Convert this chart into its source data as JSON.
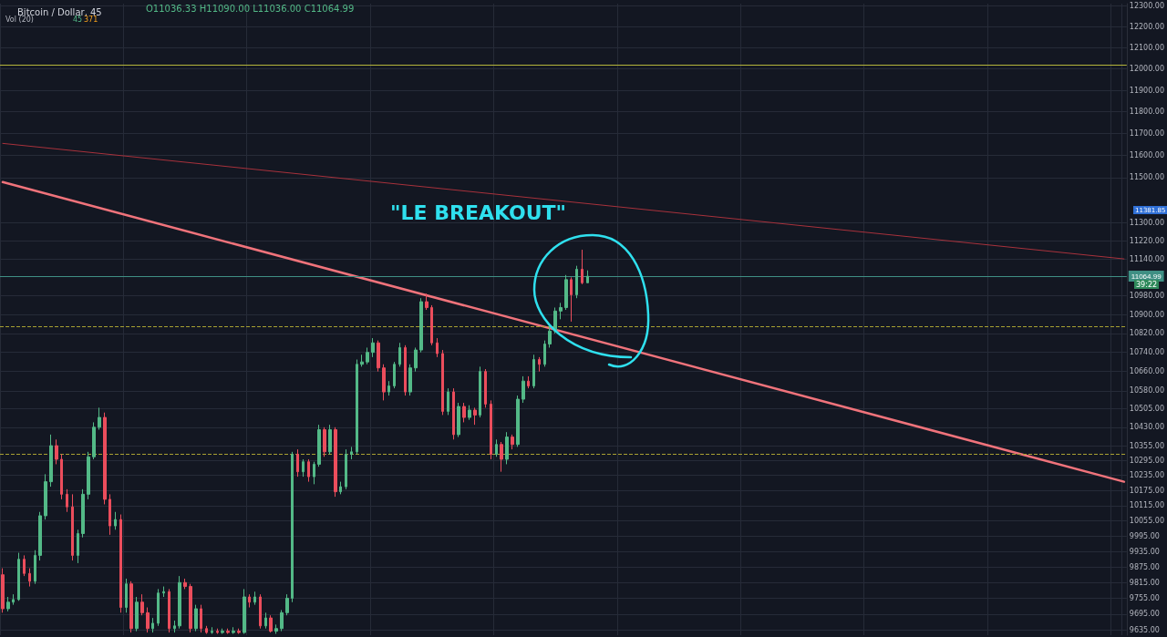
{
  "chart_data": {
    "type": "candlestick",
    "title": "Bitcoin / Dollar, 45",
    "annotations": [
      "O11036.33 H11090.00 L11036.00 C11064.99",
      "Vol (20)",
      "45",
      "371",
      "\"LE BREAKOUT\"",
      "39:22",
      "11381.85"
    ],
    "categories": [
      null,
      null,
      null,
      null,
      null,
      null,
      null,
      null,
      null,
      null,
      null,
      null,
      null,
      null,
      null,
      null,
      null,
      null,
      null,
      null,
      null,
      null,
      null,
      null,
      null,
      null,
      null,
      null,
      null,
      null,
      null,
      null,
      null,
      null,
      null,
      null,
      null,
      null,
      null,
      null,
      null,
      null,
      null,
      null,
      null,
      null,
      null,
      null,
      null,
      null,
      null,
      null,
      null,
      null,
      null,
      null,
      null,
      null,
      null,
      null,
      null,
      null,
      null,
      null,
      null,
      null,
      null,
      null,
      null,
      null,
      null,
      null,
      null,
      null,
      null,
      null,
      null,
      null,
      null,
      null,
      null,
      null,
      null,
      null,
      null,
      null,
      null,
      null,
      null,
      null,
      null,
      null,
      null,
      null,
      null,
      null,
      null,
      null,
      null,
      null,
      null,
      null,
      null,
      null,
      null,
      null,
      null,
      null,
      null,
      null,
      null,
      null,
      null,
      null,
      null,
      null,
      null,
      null,
      null,
      null,
      null,
      null,
      null,
      null,
      null,
      null,
      null,
      null,
      null,
      null,
      null,
      null,
      null,
      null,
      null,
      null,
      null,
      null,
      null,
      null,
      null,
      null,
      null,
      null,
      null,
      null,
      null,
      null,
      null,
      null,
      null,
      null,
      null,
      null,
      null,
      null,
      null,
      null,
      null,
      null,
      null,
      null,
      null,
      null,
      null,
      null,
      null,
      null,
      null,
      null,
      null,
      null,
      null,
      null,
      null,
      null,
      null,
      null,
      null,
      null,
      null,
      null,
      null,
      null,
      null,
      null,
      null,
      null,
      null,
      null,
      null,
      null,
      null,
      null,
      null,
      null,
      null,
      null,
      null,
      null,
      null,
      null,
      null,
      null,
      null,
      null,
      null,
      null,
      null,
      null
    ],
    "ohlc": [
      [
        9845,
        9870,
        9700,
        9715
      ],
      [
        9715,
        9760,
        9705,
        9740
      ],
      [
        9740,
        9770,
        9730,
        9750
      ],
      [
        9750,
        9930,
        9745,
        9905
      ],
      [
        9905,
        9920,
        9840,
        9850
      ],
      [
        9850,
        9870,
        9800,
        9820
      ],
      [
        9820,
        9940,
        9810,
        9920
      ],
      [
        9920,
        10090,
        9900,
        10075
      ],
      [
        10075,
        10240,
        10060,
        10210
      ],
      [
        10210,
        10400,
        10190,
        10355
      ],
      [
        10355,
        10380,
        10280,
        10300
      ],
      [
        10300,
        10320,
        10140,
        10160
      ],
      [
        10160,
        10180,
        10090,
        10110
      ],
      [
        10110,
        10160,
        9900,
        9920
      ],
      [
        9920,
        10020,
        9890,
        10005
      ],
      [
        10005,
        10180,
        9990,
        10160
      ],
      [
        10160,
        10330,
        10140,
        10310
      ],
      [
        10310,
        10450,
        10300,
        10430
      ],
      [
        10430,
        10510,
        10420,
        10470
      ],
      [
        10470,
        10490,
        10120,
        10140
      ],
      [
        10140,
        10160,
        10000,
        10035
      ],
      [
        10035,
        10090,
        10020,
        10060
      ],
      [
        10060,
        10080,
        9700,
        9720
      ],
      [
        9720,
        9830,
        9700,
        9810
      ],
      [
        9810,
        9820,
        9625,
        9640
      ],
      [
        9640,
        9760,
        9630,
        9740
      ],
      [
        9740,
        9770,
        9690,
        9700
      ],
      [
        9700,
        9720,
        9625,
        9640
      ],
      [
        9640,
        9680,
        9625,
        9660
      ],
      [
        9660,
        9790,
        9650,
        9775
      ],
      [
        9775,
        9800,
        9760,
        9780
      ],
      [
        9780,
        9790,
        9625,
        9640
      ],
      [
        9640,
        9670,
        9625,
        9650
      ],
      [
        9650,
        9840,
        9640,
        9815
      ],
      [
        9815,
        9830,
        9790,
        9800
      ],
      [
        9800,
        9810,
        9625,
        9640
      ],
      [
        9640,
        9730,
        9630,
        9715
      ],
      [
        9715,
        9730,
        9625,
        9640
      ],
      [
        9640,
        9650,
        9620,
        9625
      ],
      [
        9625,
        9645,
        9620,
        9630
      ],
      [
        9630,
        9640,
        9620,
        9625
      ],
      [
        9625,
        9640,
        9620,
        9630
      ],
      [
        9630,
        9640,
        9620,
        9625
      ],
      [
        9625,
        9645,
        9620,
        9630
      ],
      [
        9630,
        9640,
        9620,
        9625
      ],
      [
        9625,
        9790,
        9620,
        9760
      ],
      [
        9760,
        9770,
        9720,
        9740
      ],
      [
        9740,
        9780,
        9730,
        9760
      ],
      [
        9760,
        9770,
        9640,
        9650
      ],
      [
        9650,
        9700,
        9640,
        9680
      ],
      [
        9680,
        9690,
        9625,
        9630
      ],
      [
        9630,
        9655,
        9620,
        9640
      ],
      [
        9640,
        9710,
        9630,
        9700
      ],
      [
        9700,
        9770,
        9690,
        9755
      ],
      [
        9755,
        10330,
        9740,
        10320
      ],
      [
        10320,
        10340,
        10230,
        10250
      ],
      [
        10250,
        10300,
        10230,
        10290
      ],
      [
        10290,
        10300,
        10210,
        10230
      ],
      [
        10230,
        10290,
        10200,
        10280
      ],
      [
        10280,
        10440,
        10270,
        10420
      ],
      [
        10420,
        10430,
        10310,
        10330
      ],
      [
        10330,
        10440,
        10320,
        10420
      ],
      [
        10420,
        10430,
        10150,
        10170
      ],
      [
        10170,
        10210,
        10160,
        10190
      ],
      [
        10190,
        10340,
        10180,
        10320
      ],
      [
        10320,
        10350,
        10300,
        10330
      ],
      [
        10330,
        10710,
        10320,
        10690
      ],
      [
        10690,
        10730,
        10680,
        10700
      ],
      [
        10700,
        10760,
        10690,
        10740
      ],
      [
        10740,
        10800,
        10720,
        10780
      ],
      [
        10780,
        10790,
        10660,
        10675
      ],
      [
        10675,
        10690,
        10540,
        10575
      ],
      [
        10575,
        10620,
        10560,
        10600
      ],
      [
        10600,
        10700,
        10590,
        10690
      ],
      [
        10690,
        10780,
        10680,
        10760
      ],
      [
        10760,
        10770,
        10560,
        10575
      ],
      [
        10575,
        10690,
        10560,
        10675
      ],
      [
        10675,
        10760,
        10660,
        10750
      ],
      [
        10750,
        10970,
        10740,
        10955
      ],
      [
        10955,
        10990,
        10920,
        10930
      ],
      [
        10930,
        10940,
        10770,
        10780
      ],
      [
        10780,
        10800,
        10720,
        10735
      ],
      [
        10735,
        10750,
        10480,
        10495
      ],
      [
        10495,
        10590,
        10480,
        10575
      ],
      [
        10575,
        10590,
        10380,
        10400
      ],
      [
        10400,
        10530,
        10390,
        10515
      ],
      [
        10515,
        10530,
        10450,
        10470
      ],
      [
        10470,
        10520,
        10460,
        10500
      ],
      [
        10500,
        10510,
        10440,
        10480
      ],
      [
        10480,
        10680,
        10470,
        10660
      ],
      [
        10660,
        10670,
        10510,
        10525
      ],
      [
        10525,
        10540,
        10300,
        10320
      ],
      [
        10320,
        10380,
        10310,
        10360
      ],
      [
        10360,
        10370,
        10250,
        10300
      ],
      [
        10300,
        10410,
        10280,
        10390
      ],
      [
        10390,
        10400,
        10340,
        10360
      ],
      [
        10360,
        10560,
        10350,
        10545
      ],
      [
        10545,
        10640,
        10530,
        10620
      ],
      [
        10620,
        10640,
        10590,
        10600
      ],
      [
        10600,
        10730,
        10590,
        10710
      ],
      [
        10710,
        10720,
        10660,
        10690
      ],
      [
        10690,
        10790,
        10680,
        10775
      ],
      [
        10775,
        10850,
        10760,
        10830
      ],
      [
        10830,
        10930,
        10820,
        10915
      ],
      [
        10915,
        10950,
        10880,
        10930
      ],
      [
        10930,
        11070,
        10920,
        11050
      ],
      [
        11050,
        11060,
        10870,
        10985
      ],
      [
        10985,
        11110,
        10970,
        11095
      ],
      [
        11095,
        11180,
        11030,
        11036.33
      ],
      [
        11036.33,
        11090,
        11036,
        11064.99
      ],
      null,
      null,
      null,
      null,
      null,
      null,
      null,
      null,
      null,
      null,
      null,
      null,
      null,
      null,
      null,
      null,
      null,
      null,
      null,
      null,
      null,
      null,
      null,
      null,
      null,
      null,
      null,
      null,
      null,
      null,
      null,
      null,
      null,
      null,
      null,
      null,
      null,
      null,
      null,
      null,
      null,
      null,
      null,
      null,
      null,
      null,
      null,
      null,
      null,
      null,
      null,
      null,
      null,
      null,
      null,
      null,
      null,
      null,
      null,
      null,
      null,
      null,
      null,
      null,
      null,
      null,
      null,
      null,
      null,
      null,
      null,
      null,
      null,
      null,
      null,
      null,
      null,
      null,
      null,
      null,
      null,
      null,
      null,
      null,
      null,
      null,
      null,
      null,
      null,
      null,
      null,
      null,
      null,
      null,
      null,
      null,
      null,
      null,
      null,
      null
    ],
    "series": [
      {
        "type": "line",
        "color": "#a8323c",
        "values": [
          11655,
          null,
          null,
          null,
          null,
          null,
          null,
          null,
          null,
          null,
          null,
          null,
          null,
          null,
          null,
          null,
          null,
          null,
          null,
          null,
          null,
          null,
          null,
          null,
          null,
          null,
          null,
          null,
          null,
          null,
          null,
          null,
          null,
          null,
          null,
          null,
          null,
          null,
          null,
          null,
          null,
          null,
          null,
          null,
          null,
          null,
          null,
          null,
          null,
          null,
          null,
          null,
          null,
          null,
          null,
          null,
          null,
          null,
          null,
          null,
          null,
          null,
          null,
          null,
          null,
          null,
          null,
          null,
          null,
          null,
          null,
          null,
          null,
          null,
          null,
          null,
          null,
          null,
          null,
          null,
          null,
          null,
          null,
          null,
          null,
          null,
          null,
          null,
          null,
          null,
          null,
          null,
          null,
          null,
          null,
          null,
          null,
          null,
          null,
          null,
          null,
          null,
          null,
          null,
          null,
          null,
          null,
          null,
          null,
          null,
          null,
          null,
          null,
          null,
          null,
          null,
          null,
          null,
          null,
          null,
          null,
          null,
          null,
          null,
          null,
          null,
          null,
          null,
          null,
          null,
          null,
          null,
          null,
          null,
          null,
          null,
          null,
          null,
          null,
          null,
          null,
          null,
          null,
          null,
          null,
          null,
          null,
          null,
          null,
          null,
          null,
          null,
          null,
          null,
          null,
          null,
          null,
          null,
          null,
          null,
          null,
          null,
          null,
          null,
          null,
          null,
          null,
          null,
          null,
          null,
          null,
          null,
          null,
          null,
          null,
          null,
          null,
          null,
          null,
          null,
          null,
          null,
          null,
          null,
          null,
          null,
          null,
          null,
          null,
          null,
          null,
          null,
          null,
          null,
          null,
          null,
          null,
          null,
          null,
          null,
          null,
          null,
          null,
          null,
          null,
          null,
          null,
          null,
          null,
          11140
        ]
      },
      {
        "type": "line",
        "color": "#f0737b",
        "values": [
          11480,
          null,
          null,
          null,
          null,
          null,
          null,
          null,
          null,
          null,
          null,
          null,
          null,
          null,
          null,
          null,
          null,
          null,
          null,
          null,
          null,
          null,
          null,
          null,
          null,
          null,
          null,
          null,
          null,
          null,
          null,
          null,
          null,
          null,
          null,
          null,
          null,
          null,
          null,
          null,
          null,
          null,
          null,
          null,
          null,
          null,
          null,
          null,
          null,
          null,
          null,
          null,
          null,
          null,
          null,
          null,
          null,
          null,
          null,
          null,
          null,
          null,
          null,
          null,
          null,
          null,
          null,
          null,
          null,
          null,
          null,
          null,
          null,
          null,
          null,
          null,
          null,
          null,
          null,
          null,
          null,
          null,
          null,
          null,
          null,
          null,
          null,
          null,
          null,
          null,
          null,
          null,
          null,
          null,
          null,
          null,
          null,
          null,
          null,
          null,
          null,
          null,
          null,
          null,
          null,
          null,
          null,
          null,
          null,
          null,
          null,
          null,
          null,
          null,
          null,
          null,
          null,
          null,
          null,
          null,
          null,
          null,
          null,
          null,
          null,
          null,
          null,
          null,
          null,
          null,
          null,
          null,
          null,
          null,
          null,
          null,
          null,
          null,
          null,
          null,
          null,
          null,
          null,
          null,
          null,
          null,
          null,
          null,
          null,
          null,
          null,
          null,
          null,
          null,
          null,
          null,
          null,
          null,
          null,
          null,
          null,
          null,
          null,
          null,
          null,
          null,
          null,
          null,
          null,
          null,
          null,
          null,
          null,
          null,
          null,
          null,
          null,
          null,
          null,
          null,
          null,
          null,
          null,
          null,
          null,
          null,
          null,
          null,
          null,
          null,
          null,
          null,
          null,
          null,
          null,
          null,
          null,
          null,
          null,
          null,
          null,
          null,
          null,
          null,
          null,
          null,
          null,
          null,
          null,
          10210
        ]
      }
    ],
    "ref_lines": [
      {
        "axis": "y",
        "value": 12020,
        "color": "#b5b53a",
        "line_style": "solid"
      },
      {
        "axis": "y",
        "value": 10850,
        "color": "#a8a032",
        "line_style": "dashed"
      },
      {
        "axis": "y",
        "value": 10320,
        "color": "#a8a032",
        "line_style": "dashed"
      },
      {
        "axis": "y",
        "value": 11064.99,
        "label": "11064.99",
        "color": "#3f8f84",
        "line_style": "solid"
      }
    ],
    "ylim": [
      9615,
      12310
    ],
    "log": true,
    "yticks": [
      {
        "value": 12300,
        "label": "12300.00"
      },
      {
        "value": 12200,
        "label": "12200.00"
      },
      {
        "value": 12100,
        "label": "12100.00"
      },
      {
        "value": 12000,
        "label": "12000.00"
      },
      {
        "value": 11900,
        "label": "11900.00"
      },
      {
        "value": 11800,
        "label": "11800.00"
      },
      {
        "value": 11700,
        "label": "11700.00"
      },
      {
        "value": 11600,
        "label": "11600.00"
      },
      {
        "value": 11500,
        "label": "11500.00"
      },
      {
        "value": 11300,
        "label": "11300.00"
      },
      {
        "value": 11220,
        "label": "11220.00"
      },
      {
        "value": 11140,
        "label": "11140.00"
      },
      {
        "value": 10980,
        "label": "10980.00"
      },
      {
        "value": 10900,
        "label": "10900.00"
      },
      {
        "value": 10820,
        "label": "10820.00"
      },
      {
        "value": 10740,
        "label": "10740.00"
      },
      {
        "value": 10660,
        "label": "10660.00"
      },
      {
        "value": 10580,
        "label": "10580.00"
      },
      {
        "value": 10505,
        "label": "10505.00"
      },
      {
        "value": 10430,
        "label": "10430.00"
      },
      {
        "value": 10355,
        "label": "10355.00"
      },
      {
        "value": 10295,
        "label": "10295.00"
      },
      {
        "value": 10235,
        "label": "10235.00"
      },
      {
        "value": 10175,
        "label": "10175.00"
      },
      {
        "value": 10115,
        "label": "10115.00"
      },
      {
        "value": 10055,
        "label": "10055.00"
      },
      {
        "value": 9995,
        "label": "9995.00"
      },
      {
        "value": 9935,
        "label": "9935.00"
      },
      {
        "value": 9875,
        "label": "9875.00"
      },
      {
        "value": 9815,
        "label": "9815.00"
      },
      {
        "value": 9755,
        "label": "9755.00"
      },
      {
        "value": 9695,
        "label": "9695.00"
      },
      {
        "value": 9635,
        "label": "9635.00"
      }
    ],
    "grid": true,
    "tick_labels": "y"
  }
}
